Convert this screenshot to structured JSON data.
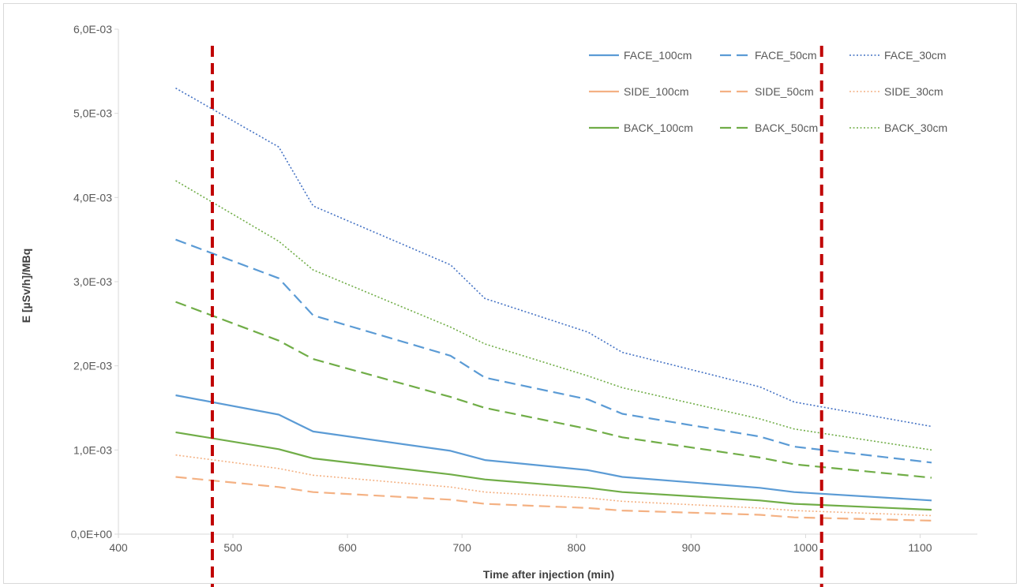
{
  "chart_data": {
    "type": "line",
    "title": "",
    "xlabel": "Time after injection (min)",
    "ylabel": "E [µSv/h]/MBq",
    "xlim": [
      400,
      1150
    ],
    "ylim": [
      0,
      0.006
    ],
    "x_ticks": [
      400,
      500,
      600,
      700,
      800,
      900,
      1000,
      1100
    ],
    "x_tick_labels": [
      "400",
      "500",
      "600",
      "700",
      "800",
      "900",
      "1000",
      "1100"
    ],
    "y_ticks": [
      0,
      0.001,
      0.002,
      0.003,
      0.004,
      0.005,
      0.006
    ],
    "y_tick_labels": [
      "0,0E+00",
      "1,0E-03",
      "2,0E-03",
      "3,0E-03",
      "4,0E-03",
      "5,0E-03",
      "6,0E-03"
    ],
    "grid": false,
    "legend_position": "top-right",
    "x": [
      450,
      540,
      570,
      690,
      720,
      810,
      840,
      960,
      990,
      1110
    ],
    "series": [
      {
        "name": "FACE_100cm",
        "color": "#5b9bd5",
        "dash": "solid",
        "values": [
          0.00165,
          0.00142,
          0.00122,
          0.00099,
          0.00088,
          0.00076,
          0.00068,
          0.00055,
          0.0005,
          0.0004
        ]
      },
      {
        "name": "FACE_50cm",
        "color": "#5b9bd5",
        "dash": "dashed",
        "values": [
          0.0035,
          0.00304,
          0.0026,
          0.00212,
          0.00186,
          0.0016,
          0.00143,
          0.00116,
          0.00104,
          0.00085
        ]
      },
      {
        "name": "FACE_30cm",
        "color": "#4472c4",
        "dash": "dotted",
        "values": [
          0.0053,
          0.0046,
          0.0039,
          0.0032,
          0.0028,
          0.0024,
          0.00216,
          0.00175,
          0.00157,
          0.00128
        ]
      },
      {
        "name": "SIDE_100cm",
        "color": "#f4b183",
        "dash": "solid",
        "values": [
          null,
          null,
          null,
          null,
          null,
          null,
          null,
          null,
          null,
          null
        ]
      },
      {
        "name": "SIDE_50cm",
        "color": "#f4b183",
        "dash": "dashed",
        "values": [
          0.00068,
          0.00056,
          0.0005,
          0.00041,
          0.00036,
          0.00031,
          0.00028,
          0.00023,
          0.0002,
          0.00016
        ]
      },
      {
        "name": "SIDE_30cm",
        "color": "#f4b183",
        "dash": "dotted",
        "values": [
          0.00094,
          0.00078,
          0.0007,
          0.00056,
          0.0005,
          0.00043,
          0.00039,
          0.00031,
          0.00028,
          0.00022
        ]
      },
      {
        "name": "BACK_100cm",
        "color": "#70ad47",
        "dash": "solid",
        "values": [
          0.00121,
          0.00101,
          0.0009,
          0.00071,
          0.00065,
          0.00055,
          0.0005,
          0.0004,
          0.00036,
          0.00029
        ]
      },
      {
        "name": "BACK_50cm",
        "color": "#70ad47",
        "dash": "dashed",
        "values": [
          0.00276,
          0.0023,
          0.00208,
          0.00163,
          0.0015,
          0.00125,
          0.00115,
          0.00091,
          0.00083,
          0.00067
        ]
      },
      {
        "name": "BACK_30cm",
        "color": "#70ad47",
        "dash": "dotted",
        "values": [
          0.0042,
          0.00348,
          0.00314,
          0.00246,
          0.00226,
          0.00188,
          0.00174,
          0.00137,
          0.00125,
          0.001
        ]
      }
    ],
    "reference_lines": [
      {
        "x": 482,
        "color": "#c00000",
        "dash": "dashed"
      },
      {
        "x": 1014,
        "color": "#c00000",
        "dash": "dashed"
      }
    ]
  }
}
